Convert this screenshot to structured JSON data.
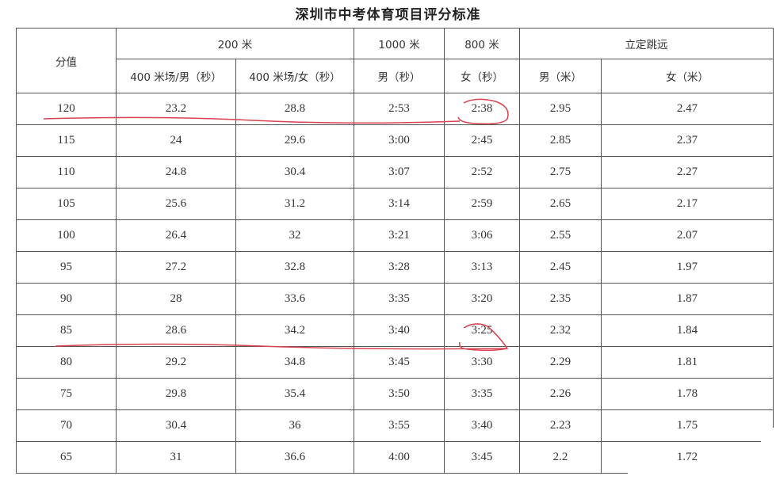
{
  "title": "深圳市中考体育项目评分标准",
  "header": {
    "score": "分值",
    "groups": [
      "200 米",
      "1000 米",
      "800 米",
      "立定跳远"
    ],
    "columns": [
      "400 米场/男（秒）",
      "400 米场/女（秒）",
      "男（秒）",
      "女（秒）",
      "男（米）",
      "女（米）"
    ]
  },
  "rows": [
    [
      "120",
      "23.2",
      "28.8",
      "2:53",
      "2:38",
      "2.95",
      "2.47"
    ],
    [
      "115",
      "24",
      "29.6",
      "3:00",
      "2:45",
      "2.85",
      "2.37"
    ],
    [
      "110",
      "24.8",
      "30.4",
      "3:07",
      "2:52",
      "2.75",
      "2.27"
    ],
    [
      "105",
      "25.6",
      "31.2",
      "3:14",
      "2:59",
      "2.65",
      "2.17"
    ],
    [
      "100",
      "26.4",
      "32",
      "3:21",
      "3:06",
      "2.55",
      "2.07"
    ],
    [
      "95",
      "27.2",
      "32.8",
      "3:28",
      "3:13",
      "2.45",
      "1.97"
    ],
    [
      "90",
      "28",
      "33.6",
      "3:35",
      "3:20",
      "2.35",
      "1.87"
    ],
    [
      "85",
      "28.6",
      "34.2",
      "3:40",
      "3:25",
      "2.32",
      "1.84"
    ],
    [
      "80",
      "29.2",
      "34.8",
      "3:45",
      "3:30",
      "2.29",
      "1.81"
    ],
    [
      "75",
      "29.8",
      "35.4",
      "3:50",
      "3:35",
      "2.26",
      "1.78"
    ],
    [
      "70",
      "30.4",
      "36",
      "3:55",
      "3:40",
      "2.23",
      "1.75"
    ],
    [
      "65",
      "31",
      "36.6",
      "4:00",
      "3:45",
      "2.2",
      "1.72"
    ]
  ],
  "annotation_color": "#d9424f",
  "highlighted_scores": [
    "120",
    "85"
  ]
}
